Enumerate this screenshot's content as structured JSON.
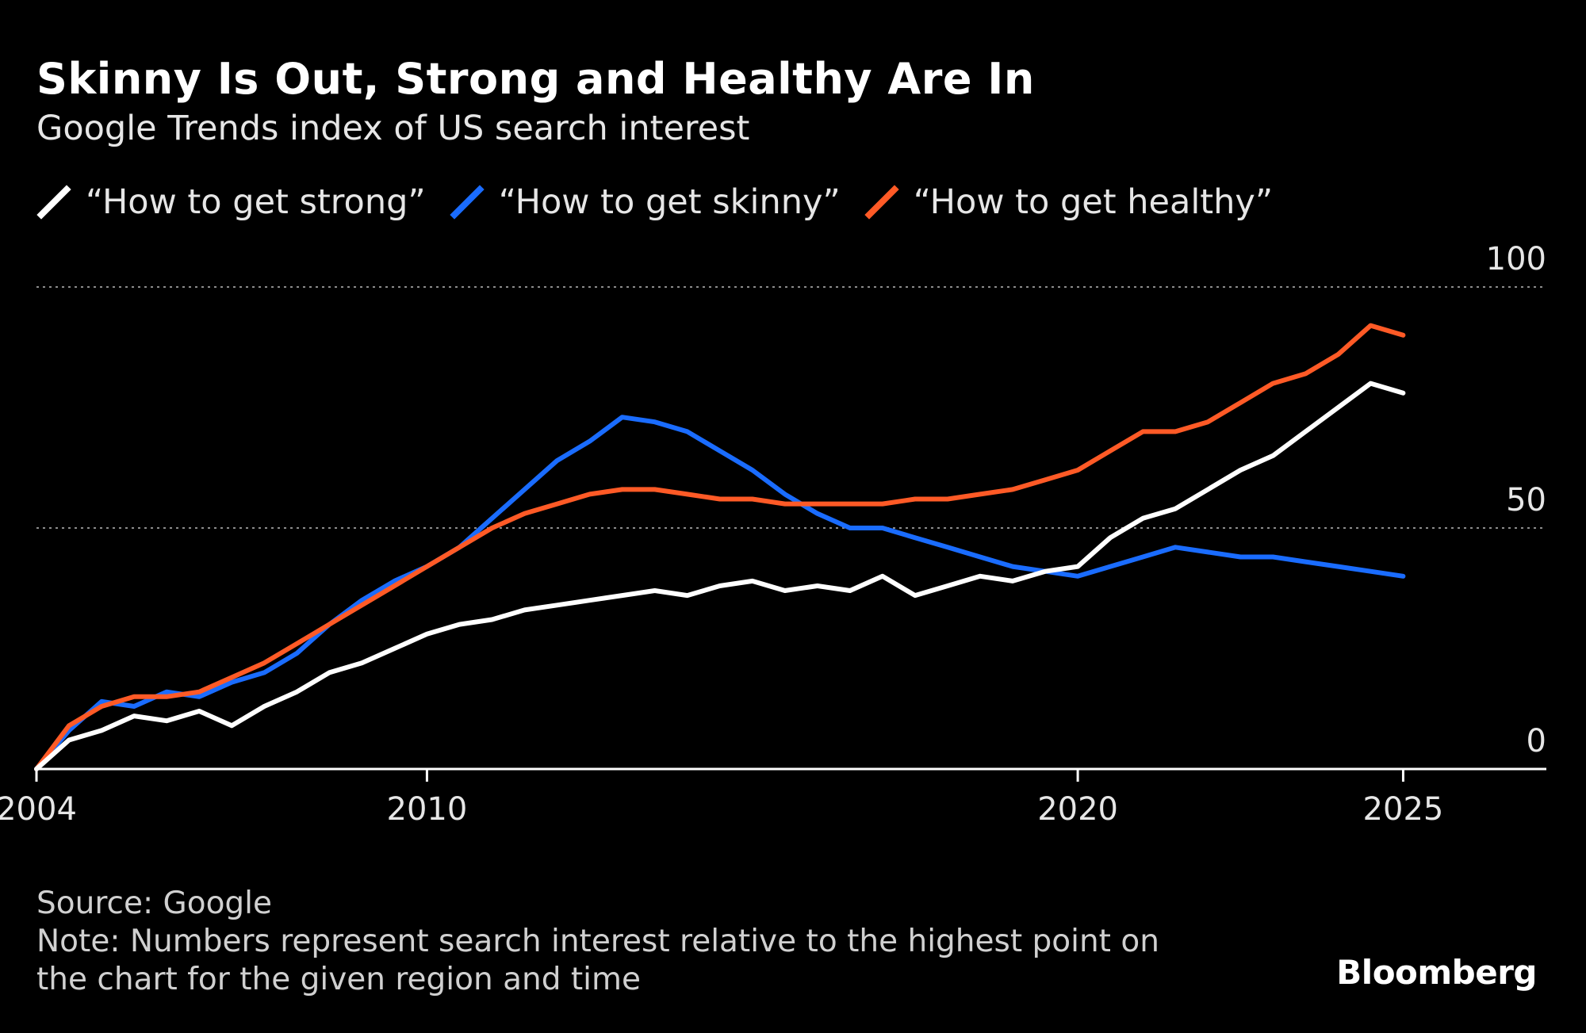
{
  "title": "Skinny Is Out, Strong and Healthy Are In",
  "subtitle": "Google Trends index of US search interest",
  "footer": {
    "source": "Source: Google",
    "note_line1": "Note: Numbers represent search interest relative to the highest point on",
    "note_line2": "the chart for the given region and time"
  },
  "brand": "Bloomberg",
  "colors": {
    "background": "#000000",
    "strong": "#ffffff",
    "skinny": "#1a6cff",
    "healthy": "#ff5a26",
    "grid": "#8c8c8c"
  },
  "chart_data": {
    "type": "line",
    "title": "Skinny Is Out, Strong and Healthy Are In",
    "subtitle": "Google Trends index of US search interest",
    "xlabel": "",
    "ylabel": "",
    "x_ticks": [
      "2004",
      "2010",
      "2020",
      "2025"
    ],
    "y_ticks": [
      "0",
      "50",
      "100"
    ],
    "xlim": [
      2004,
      2027.2
    ],
    "ylim": [
      0,
      100
    ],
    "grid": "horizontal dotted at 50 and 100",
    "legend_position": "top",
    "series": [
      {
        "name": "“How to get strong”",
        "color": "#ffffff",
        "x": [
          2004.0,
          2004.5,
          2005.0,
          2005.5,
          2006.0,
          2006.5,
          2007.0,
          2007.5,
          2008.0,
          2008.5,
          2009.0,
          2009.5,
          2010.0,
          2010.5,
          2011.0,
          2011.5,
          2012.0,
          2012.5,
          2013.0,
          2013.5,
          2014.0,
          2014.5,
          2015.0,
          2015.5,
          2016.0,
          2016.5,
          2017.0,
          2017.5,
          2018.0,
          2018.5,
          2019.0,
          2019.5,
          2020.0,
          2020.5,
          2021.0,
          2021.5,
          2022.0,
          2022.5,
          2023.0,
          2023.5,
          2024.0,
          2024.5,
          2025.0
        ],
        "y": [
          0,
          6,
          8,
          11,
          10,
          12,
          9,
          13,
          16,
          20,
          22,
          25,
          28,
          30,
          31,
          33,
          34,
          35,
          36,
          37,
          36,
          38,
          39,
          37,
          38,
          37,
          40,
          36,
          38,
          40,
          39,
          41,
          42,
          48,
          52,
          54,
          58,
          62,
          65,
          70,
          75,
          80,
          78
        ]
      },
      {
        "name": "“How to get skinny”",
        "color": "#1a6cff",
        "x": [
          2004.0,
          2004.5,
          2005.0,
          2005.5,
          2006.0,
          2006.5,
          2007.0,
          2007.5,
          2008.0,
          2008.5,
          2009.0,
          2009.5,
          2010.0,
          2010.5,
          2011.0,
          2011.5,
          2012.0,
          2012.5,
          2013.0,
          2013.5,
          2014.0,
          2014.5,
          2015.0,
          2015.5,
          2016.0,
          2016.5,
          2017.0,
          2017.5,
          2018.0,
          2018.5,
          2019.0,
          2019.5,
          2020.0,
          2020.5,
          2021.0,
          2021.5,
          2022.0,
          2022.5,
          2023.0,
          2023.5,
          2024.0,
          2024.5,
          2025.0
        ],
        "y": [
          0,
          8,
          14,
          13,
          16,
          15,
          18,
          20,
          24,
          30,
          35,
          39,
          42,
          46,
          52,
          58,
          64,
          68,
          73,
          72,
          70,
          66,
          62,
          57,
          53,
          50,
          50,
          48,
          46,
          44,
          42,
          41,
          40,
          42,
          44,
          46,
          45,
          44,
          44,
          43,
          42,
          41,
          40
        ]
      },
      {
        "name": "“How to get healthy”",
        "color": "#ff5a26",
        "x": [
          2004.0,
          2004.5,
          2005.0,
          2005.5,
          2006.0,
          2006.5,
          2007.0,
          2007.5,
          2008.0,
          2008.5,
          2009.0,
          2009.5,
          2010.0,
          2010.5,
          2011.0,
          2011.5,
          2012.0,
          2012.5,
          2013.0,
          2013.5,
          2014.0,
          2014.5,
          2015.0,
          2015.5,
          2016.0,
          2016.5,
          2017.0,
          2017.5,
          2018.0,
          2018.5,
          2019.0,
          2019.5,
          2020.0,
          2020.5,
          2021.0,
          2021.5,
          2022.0,
          2022.5,
          2023.0,
          2023.5,
          2024.0,
          2024.5,
          2025.0
        ],
        "y": [
          0,
          9,
          13,
          15,
          15,
          16,
          19,
          22,
          26,
          30,
          34,
          38,
          42,
          46,
          50,
          53,
          55,
          57,
          58,
          58,
          57,
          56,
          56,
          55,
          55,
          55,
          55,
          56,
          56,
          57,
          58,
          60,
          62,
          66,
          70,
          70,
          72,
          76,
          80,
          82,
          86,
          92,
          90
        ]
      }
    ]
  }
}
